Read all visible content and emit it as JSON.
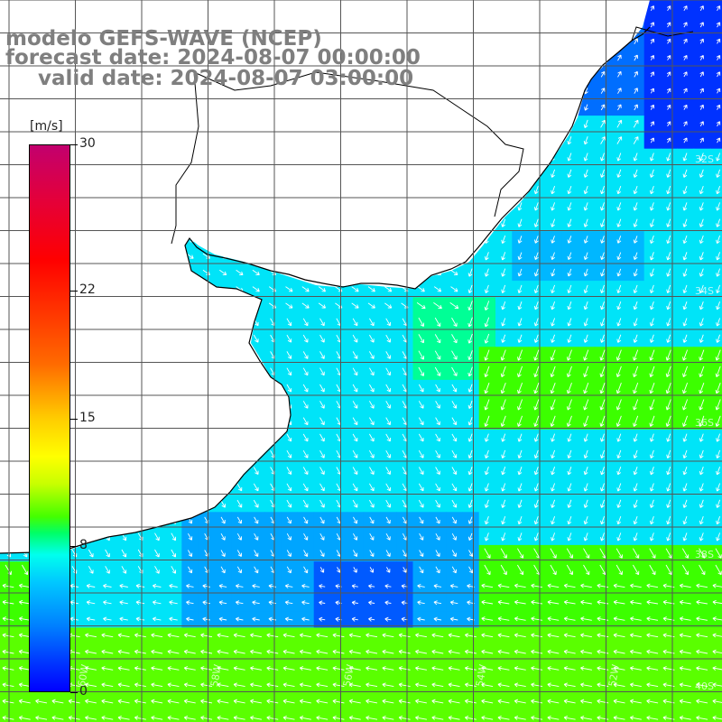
{
  "title": {
    "line1": "modelo GEFS-WAVE (NCEP)",
    "line2": "forecast date: 2024-08-07 00:00:00",
    "line3": "valid date: 2024-08-07 03:00:00"
  },
  "colorbar": {
    "unit": "[m/s]",
    "min": 0,
    "max": 30,
    "ticks": [
      "30",
      "22",
      "15",
      "8",
      "0"
    ],
    "tick_values": [
      30,
      22,
      15,
      8,
      0
    ]
  },
  "map": {
    "variable": "wind speed with wind direction arrows",
    "land_color": "#ffffff",
    "coastline_color": "#000000",
    "grid_color": "#555555",
    "arrow_color": "#ffffff",
    "lat_labels": [
      "32S",
      "34S",
      "36S",
      "38S",
      "40S"
    ],
    "lon_labels": [
      "60W",
      "58W",
      "56W",
      "54W",
      "52W"
    ]
  }
}
